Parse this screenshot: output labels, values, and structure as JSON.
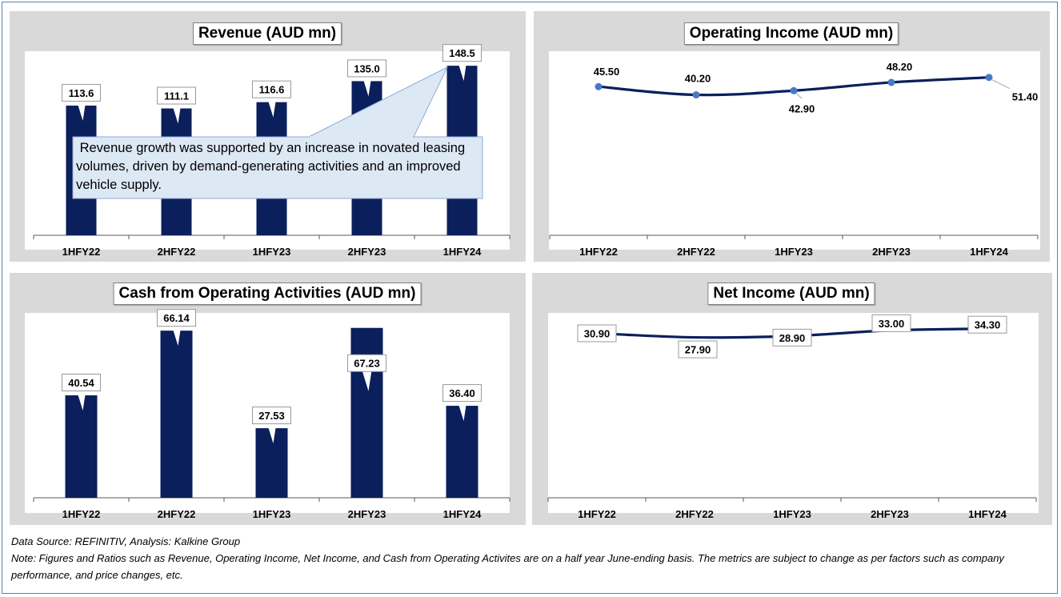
{
  "colors": {
    "bar": "#0a1f5c",
    "line": "#0a1f5c",
    "marker": "#4a78c8",
    "panel_bg": "#d9d9d9"
  },
  "chart_data": [
    {
      "type": "bar",
      "title": "Revenue (AUD mn)",
      "categories": [
        "1HFY22",
        "2HFY22",
        "1HFY23",
        "2HFY23",
        "1HFY24"
      ],
      "values": [
        113.6,
        111.1,
        116.6,
        135.0,
        148.5
      ],
      "labels": [
        "113.6",
        "111.1",
        "116.6",
        "135.0",
        "148.5"
      ],
      "ylim": [
        0,
        150
      ],
      "grid": false,
      "annotation": " Revenue growth was supported by an increase in novated leasing volumes, driven by demand-generating activities and an improved vehicle supply."
    },
    {
      "type": "line",
      "title": "Operating Income (AUD mn)",
      "categories": [
        "1HFY22",
        "2HFY22",
        "1HFY23",
        "2HFY23",
        "1HFY24"
      ],
      "values": [
        45.5,
        40.2,
        42.9,
        48.2,
        51.4
      ],
      "labels": [
        "45.50",
        "40.20",
        "42.90",
        "48.20",
        "51.40"
      ],
      "ylim": [
        -50,
        60
      ],
      "grid": false
    },
    {
      "type": "bar",
      "title": "Cash from Operating Activities (AUD mn)",
      "categories": [
        "1HFY22",
        "2HFY22",
        "1HFY23",
        "2HFY23",
        "1HFY24"
      ],
      "values": [
        40.54,
        66.14,
        27.53,
        67.23,
        36.4
      ],
      "labels": [
        "40.54",
        "66.14",
        "27.53",
        "67.23",
        "36.40"
      ],
      "ylim": [
        0,
        70
      ],
      "grid": false
    },
    {
      "type": "line",
      "title": "Net Income (AUD mn)",
      "categories": [
        "1HFY22",
        "2HFY22",
        "1HFY23",
        "2HFY23",
        "1HFY24"
      ],
      "values": [
        30.9,
        27.9,
        28.9,
        33.0,
        34.3
      ],
      "labels": [
        "30.90",
        "27.90",
        "28.90",
        "33.00",
        "34.30"
      ],
      "ylim": [
        -90,
        40
      ],
      "grid": false
    }
  ],
  "footer": {
    "source": "Data Source: REFINITIV, Analysis: Kalkine Group",
    "note": "Note: Figures and Ratios such as Revenue, Operating Income, Net Income, and Cash from Operating Activites are on a half year June-ending basis. The metrics are subject to change as per factors such as company performance, and price changes, etc."
  }
}
